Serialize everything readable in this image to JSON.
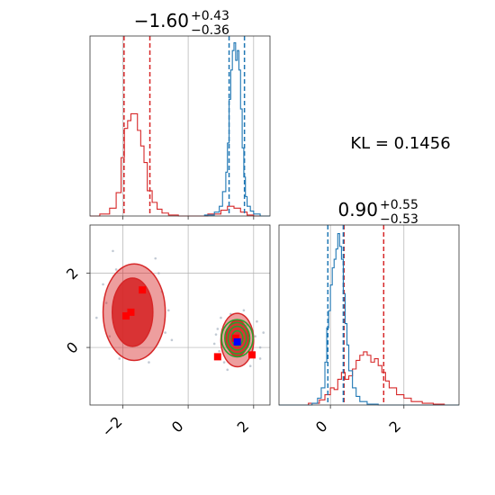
{
  "chart_data": {
    "type": "corner",
    "kl_text": "KL = 0.1456",
    "colors": {
      "red": "#d62728",
      "blue": "#1f77b4",
      "green": "#2ca02c",
      "marker_red": "#ff0000",
      "marker_blue": "#0000ff",
      "grid": "#b0b0b0"
    },
    "panels": [
      {
        "id": "hist-top",
        "type": "histogram",
        "title": {
          "main": "−1.60",
          "sup": "+0.43",
          "sub": "−0.36"
        },
        "xlim": [
          -3.0,
          2.5
        ],
        "xticks": [
          -2,
          0,
          2
        ],
        "red_quantiles": [
          -1.96,
          -1.17
        ],
        "blue_quantiles": [
          1.25,
          1.72
        ],
        "red_hist": {
          "edges": [
            -3.0,
            -2.7,
            -2.4,
            -2.2,
            -2.05,
            -1.95,
            -1.85,
            -1.75,
            -1.65,
            -1.55,
            -1.45,
            -1.35,
            -1.25,
            -1.1,
            -0.95,
            -0.8,
            -0.6,
            -0.3,
            0.0,
            0.6,
            1.0,
            1.2,
            1.4,
            1.6,
            1.8,
            2.0,
            2.5
          ],
          "counts": [
            0,
            2,
            8,
            24,
            60,
            90,
            98,
            105,
            105,
            88,
            72,
            55,
            26,
            14,
            7,
            3,
            1,
            0,
            0,
            2,
            6,
            10,
            8,
            4,
            1,
            0
          ]
        },
        "blue_hist": {
          "edges": [
            0.5,
            0.8,
            0.95,
            1.05,
            1.15,
            1.2,
            1.25,
            1.3,
            1.35,
            1.4,
            1.45,
            1.5,
            1.55,
            1.6,
            1.65,
            1.7,
            1.75,
            1.8,
            1.9,
            2.0,
            2.2,
            2.5
          ],
          "counts": [
            1,
            4,
            10,
            25,
            45,
            75,
            120,
            150,
            170,
            178,
            160,
            170,
            150,
            110,
            70,
            40,
            20,
            10,
            5,
            2,
            0
          ]
        },
        "ymax": 185
      },
      {
        "id": "hist-right",
        "type": "histogram",
        "title": {
          "main": "0.90",
          "sup": "+0.55",
          "sub": "−0.53"
        },
        "xlim": [
          -1.4,
          3.5
        ],
        "xticks": [
          0,
          2
        ],
        "red_quantiles": [
          0.37,
          1.45
        ],
        "blue_quantiles": [
          -0.07,
          0.35
        ],
        "red_hist": {
          "edges": [
            -1.4,
            -0.6,
            -0.3,
            -0.15,
            0.0,
            0.1,
            0.2,
            0.3,
            0.4,
            0.5,
            0.6,
            0.7,
            0.8,
            0.9,
            1.0,
            1.1,
            1.2,
            1.3,
            1.4,
            1.5,
            1.6,
            1.8,
            2.0,
            2.2,
            2.5,
            2.8,
            3.1,
            3.5
          ],
          "counts": [
            0,
            2,
            6,
            12,
            20,
            18,
            30,
            38,
            30,
            34,
            42,
            52,
            58,
            62,
            58,
            50,
            54,
            46,
            38,
            28,
            20,
            12,
            8,
            4,
            2,
            1,
            0
          ]
        },
        "blue_hist": {
          "edges": [
            -1.4,
            -0.5,
            -0.35,
            -0.25,
            -0.15,
            -0.1,
            -0.05,
            0.0,
            0.05,
            0.1,
            0.15,
            0.2,
            0.25,
            0.3,
            0.35,
            0.4,
            0.45,
            0.5,
            0.6,
            0.7,
            0.8,
            1.0,
            1.3,
            3.5
          ],
          "counts": [
            0,
            2,
            8,
            20,
            50,
            90,
            110,
            140,
            160,
            170,
            182,
            200,
            185,
            170,
            130,
            95,
            70,
            40,
            20,
            10,
            4,
            1,
            0
          ]
        },
        "ymax": 210
      },
      {
        "id": "joint",
        "type": "scatter-contour",
        "xlim": [
          -3.0,
          2.5
        ],
        "ylim": [
          -1.55,
          3.3
        ],
        "xticks": [
          -2,
          0,
          2
        ],
        "yticks": [
          0,
          2
        ],
        "red_contours_left": [
          {
            "level": "outer",
            "cx": -1.65,
            "cy": 0.95,
            "rx": 0.95,
            "ry": 1.3
          },
          {
            "level": "inner",
            "cx": -1.7,
            "cy": 0.95,
            "rx": 0.62,
            "ry": 0.92
          }
        ],
        "red_contours_right": [
          {
            "level": "outer",
            "cx": 1.5,
            "cy": 0.2,
            "rx": 0.5,
            "ry": 0.72
          },
          {
            "level": "inner",
            "cx": 1.5,
            "cy": 0.25,
            "rx": 0.34,
            "ry": 0.48
          }
        ],
        "green_contours": [
          {
            "cx": 1.5,
            "cy": 0.25,
            "rx": 0.48,
            "ry": 0.5
          },
          {
            "cx": 1.5,
            "cy": 0.25,
            "rx": 0.38,
            "ry": 0.42
          },
          {
            "cx": 1.5,
            "cy": 0.25,
            "rx": 0.28,
            "ry": 0.32
          },
          {
            "cx": 1.5,
            "cy": 0.25,
            "rx": 0.17,
            "ry": 0.2
          }
        ],
        "red_markers": [
          {
            "x": -1.4,
            "y": 1.55
          },
          {
            "x": -1.75,
            "y": 0.95
          },
          {
            "x": -1.9,
            "y": 0.85
          },
          {
            "x": 0.9,
            "y": -0.25
          },
          {
            "x": 1.45,
            "y": 0.25
          },
          {
            "x": 1.95,
            "y": -0.2
          }
        ],
        "blue_marker": {
          "x": 1.5,
          "y": 0.15
        },
        "scatter_points": [
          [
            -2.6,
            1.7
          ],
          [
            -2.4,
            0.3
          ],
          [
            -2.2,
            2.1
          ],
          [
            -0.8,
            1.5
          ],
          [
            -0.7,
            0.4
          ],
          [
            -2.5,
            1.2
          ],
          [
            -0.9,
            2.0
          ],
          [
            -1.2,
            -0.4
          ],
          [
            -2.1,
            -0.3
          ],
          [
            -0.6,
            1.0
          ],
          [
            0.9,
            0.5
          ],
          [
            1.0,
            0.8
          ],
          [
            2.1,
            0.7
          ],
          [
            2.2,
            0.0
          ],
          [
            1.1,
            -0.4
          ],
          [
            1.9,
            -0.5
          ],
          [
            0.8,
            0.1
          ],
          [
            2.3,
            0.4
          ],
          [
            1.3,
            0.9
          ],
          [
            1.7,
            1.0
          ],
          [
            2.2,
            -0.3
          ],
          [
            0.95,
            -0.1
          ],
          [
            1.2,
            -0.6
          ],
          [
            1.8,
            0.6
          ],
          [
            2.05,
            0.3
          ],
          [
            0.85,
            0.35
          ],
          [
            -2.8,
            0.8
          ],
          [
            -1.0,
            2.4
          ],
          [
            -2.3,
            2.6
          ],
          [
            -0.5,
            0.2
          ]
        ]
      }
    ]
  }
}
